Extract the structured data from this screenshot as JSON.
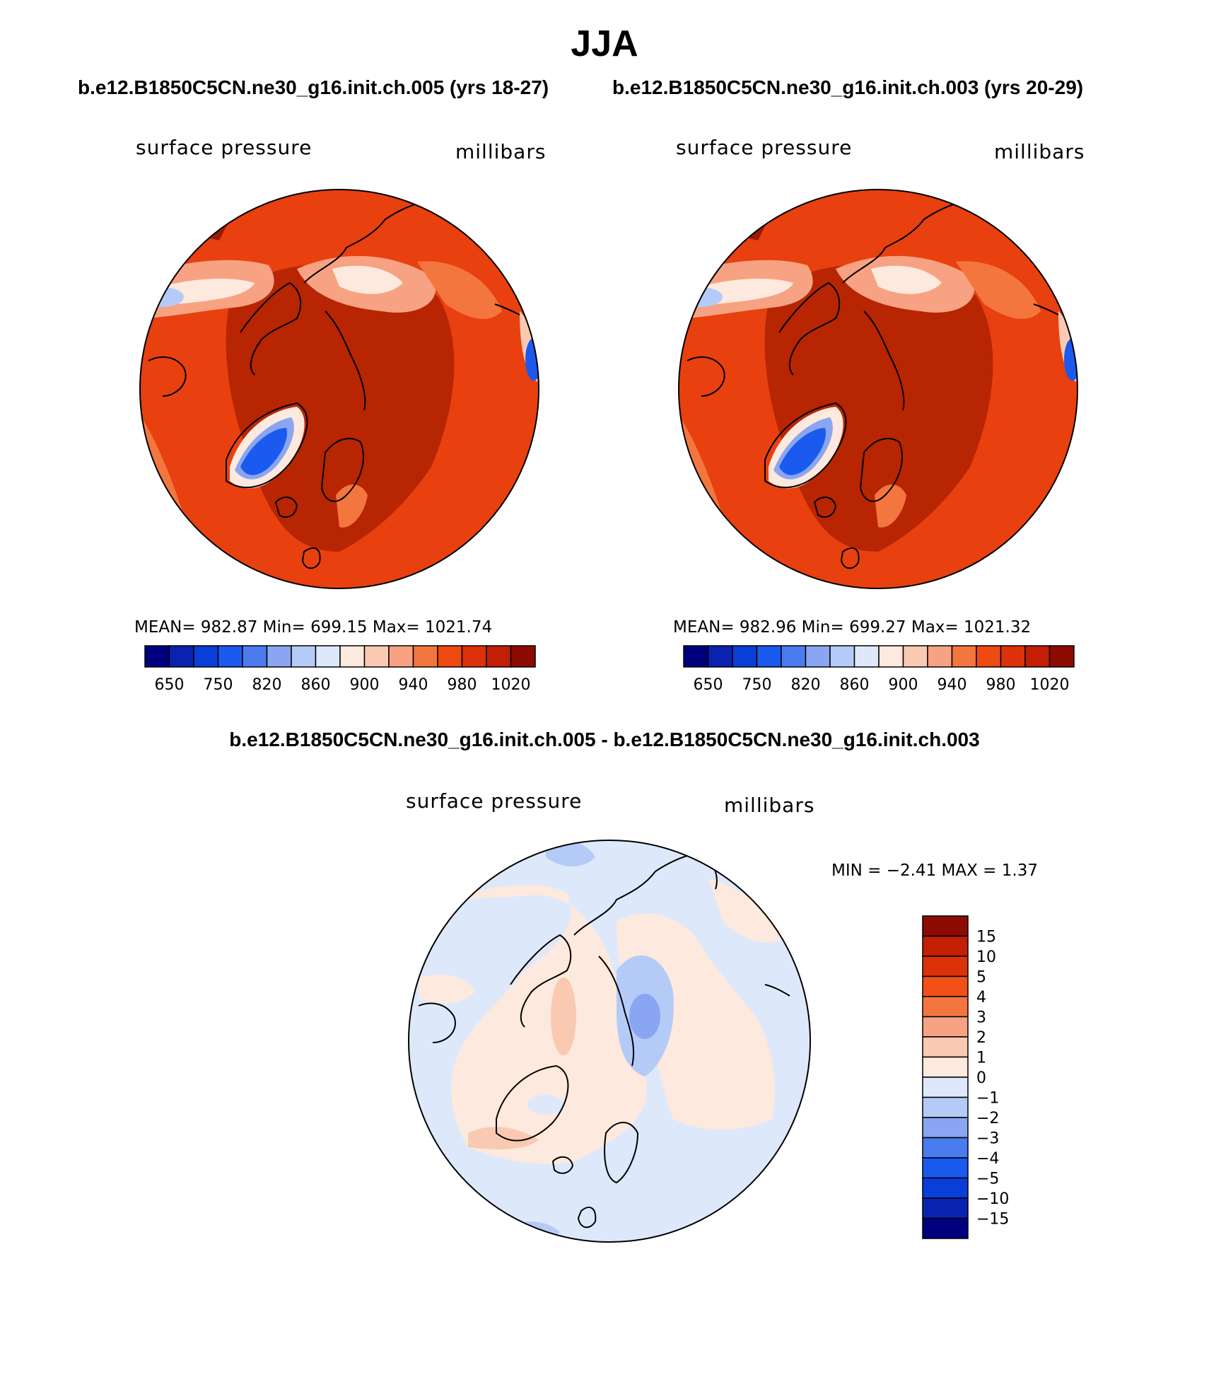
{
  "title": "JJA",
  "subtitles": [
    "b.e12.B1850C5CN.ne30_g16.init.ch.005 (yrs 18-27)",
    "b.e12.B1850C5CN.ne30_g16.init.ch.003 (yrs 20-29)"
  ],
  "diff_title": "b.e12.B1850C5CN.ne30_g16.init.ch.005 - b.e12.B1850C5CN.ne30_g16.init.ch.003",
  "panels": [
    {
      "variable": "surface pressure",
      "units": "millibars",
      "stats": "MEAN= 982.87   Min= 699.15   Max= 1021.74"
    },
    {
      "variable": "surface pressure",
      "units": "millibars",
      "stats": "MEAN= 982.96   Min= 699.27   Max= 1021.32"
    },
    {
      "variable": "surface pressure",
      "units": "millibars",
      "stats": "MIN =   −2.41  MAX =     1.37"
    }
  ],
  "colorbar_abs": {
    "colors": [
      "#00007f",
      "#0a22b0",
      "#0a3ed8",
      "#1a5aee",
      "#4a7cf0",
      "#8aa6f2",
      "#b5cbf7",
      "#dde9fb",
      "#fde9dd",
      "#fac9b2",
      "#f7a282",
      "#f4763f",
      "#ee4a12",
      "#dc3209",
      "#c21f05",
      "#8c0b02"
    ],
    "labels": [
      "650",
      "750",
      "820",
      "860",
      "900",
      "940",
      "980",
      "1020"
    ]
  },
  "colorbar_diff": {
    "colors": [
      "#8c0b02",
      "#c21f05",
      "#dc3209",
      "#f35018",
      "#f4763f",
      "#f7a282",
      "#fac9b2",
      "#fde9dd",
      "#dde9fb",
      "#b5cbf7",
      "#8aa6f2",
      "#4a7cf0",
      "#1a5aee",
      "#0a3ed8",
      "#0a22b0",
      "#00007f"
    ],
    "labels": [
      "15",
      "10",
      "5",
      "4",
      "3",
      "2",
      "1",
      "0",
      "−1",
      "−2",
      "−3",
      "−4",
      "−5",
      "−10",
      "−15"
    ]
  }
}
